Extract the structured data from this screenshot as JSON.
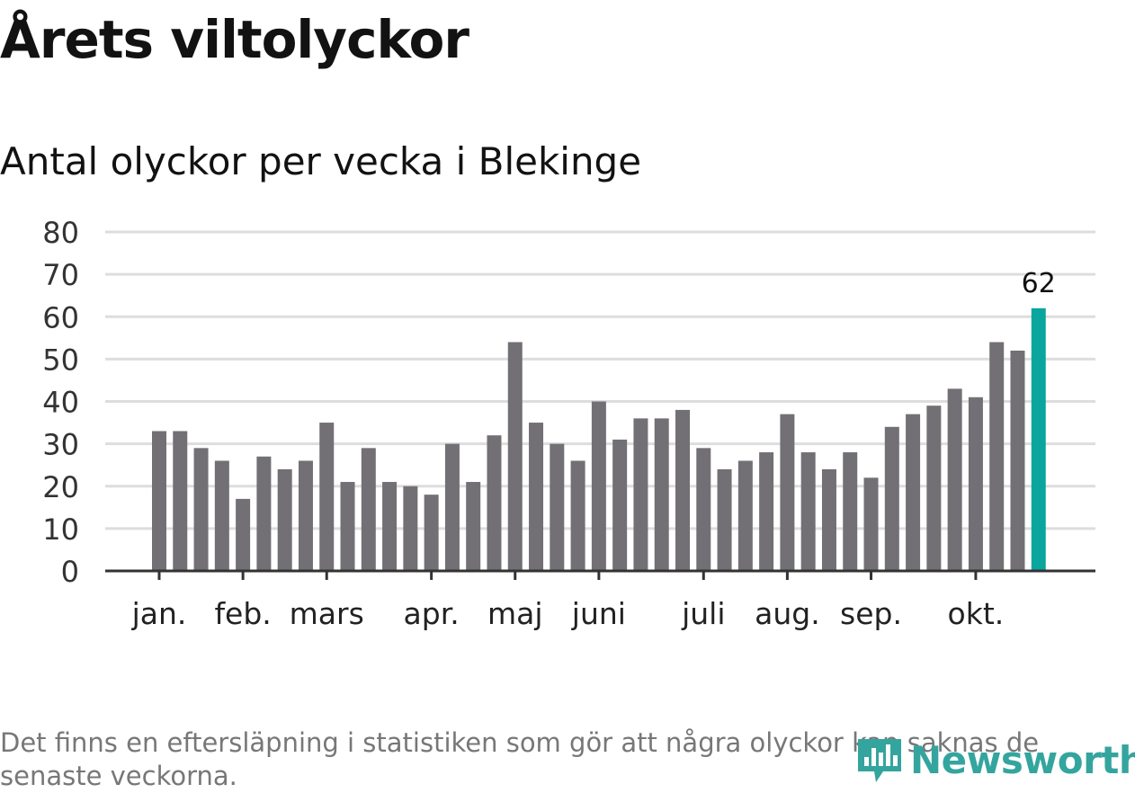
{
  "header": {
    "title": "Årets viltolyckor",
    "subtitle": "Antal olyckor per vecka i Blekinge"
  },
  "footnote": "Det finns en eftersläpning i statistiken som gör att några olyckor kan saknas de senaste veckorna.",
  "brand": {
    "name": "Newsworthy",
    "logo_icon": "newsworthy-logo-icon"
  },
  "colors": {
    "bar": "#727075",
    "highlight": "#0aa59d",
    "grid": "#dddddd",
    "axis": "#333333",
    "logo": "#34a59e"
  },
  "chart_data": {
    "type": "bar",
    "title": "Antal olyckor per vecka i Blekinge",
    "xlabel": "",
    "ylabel": "",
    "ylim": [
      0,
      80
    ],
    "yticks": [
      "0",
      "10",
      "20",
      "30",
      "40",
      "50",
      "60",
      "70",
      "80"
    ],
    "grid": true,
    "values": [
      33,
      33,
      29,
      26,
      17,
      27,
      24,
      26,
      35,
      21,
      29,
      21,
      20,
      18,
      30,
      21,
      32,
      54,
      35,
      30,
      26,
      40,
      31,
      36,
      36,
      38,
      29,
      24,
      26,
      28,
      37,
      28,
      24,
      28,
      22,
      34,
      37,
      39,
      43,
      41,
      54,
      52,
      62
    ],
    "highlight_index": 42,
    "highlight_label": "62",
    "month_ticks": [
      {
        "label": "jan.",
        "bar": 0
      },
      {
        "label": "feb.",
        "bar": 4
      },
      {
        "label": "mars",
        "bar": 8
      },
      {
        "label": "apr.",
        "bar": 13
      },
      {
        "label": "maj",
        "bar": 17
      },
      {
        "label": "juni",
        "bar": 21
      },
      {
        "label": "juli",
        "bar": 26
      },
      {
        "label": "aug.",
        "bar": 30
      },
      {
        "label": "sep.",
        "bar": 34
      },
      {
        "label": "okt.",
        "bar": 39
      }
    ]
  }
}
